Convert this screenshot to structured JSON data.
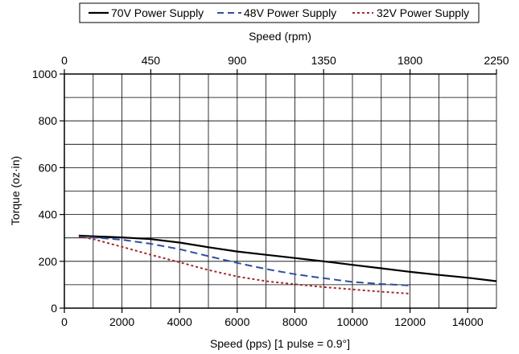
{
  "chart_data": {
    "type": "line",
    "x": [
      500,
      1000,
      2000,
      3000,
      4000,
      5000,
      6000,
      7000,
      8000,
      9000,
      10000,
      11000,
      12000,
      13000,
      14000,
      15000
    ],
    "series": [
      {
        "name": "70V Power Supply",
        "color": "#000000",
        "dash": "solid",
        "x": [
          500,
          1000,
          2000,
          3000,
          4000,
          5000,
          6000,
          7000,
          8000,
          9000,
          10000,
          11000,
          12000,
          13000,
          14000,
          15000
        ],
        "values": [
          310,
          307,
          302,
          295,
          280,
          260,
          242,
          228,
          214,
          200,
          185,
          170,
          155,
          142,
          130,
          115
        ]
      },
      {
        "name": "48V Power Supply",
        "color": "#2e4f9e",
        "dash": "dashed",
        "x": [
          500,
          1000,
          2000,
          3000,
          4000,
          5000,
          6000,
          7000,
          8000,
          9000,
          10000,
          11000,
          12000
        ],
        "values": [
          305,
          302,
          292,
          275,
          252,
          222,
          193,
          167,
          145,
          128,
          112,
          103,
          97
        ]
      },
      {
        "name": "32V Power Supply",
        "color": "#a52a2a",
        "dash": "dotted",
        "x": [
          500,
          1000,
          2000,
          3000,
          4000,
          5000,
          6000,
          7000,
          8000,
          9000,
          10000,
          11000,
          12000
        ],
        "values": [
          305,
          295,
          262,
          228,
          196,
          163,
          135,
          115,
          102,
          90,
          80,
          70,
          62
        ]
      }
    ],
    "xlabel": "Speed (pps)  [1 pulse = 0.9°]",
    "ylabel": "Torque (oz·in)",
    "x2label": "Speed (rpm)",
    "xlim": [
      0,
      15000
    ],
    "ylim": [
      0,
      1000
    ],
    "x2lim": [
      0,
      2250
    ],
    "xticks": [
      "0",
      "2000",
      "4000",
      "6000",
      "8000",
      "10000",
      "12000",
      "14000"
    ],
    "x2ticks": [
      "0",
      "450",
      "900",
      "1350",
      "1800",
      "2250"
    ],
    "yticks": [
      "0",
      "200",
      "400",
      "600",
      "800",
      "1000"
    ],
    "grid": true,
    "legend_position": "top"
  }
}
